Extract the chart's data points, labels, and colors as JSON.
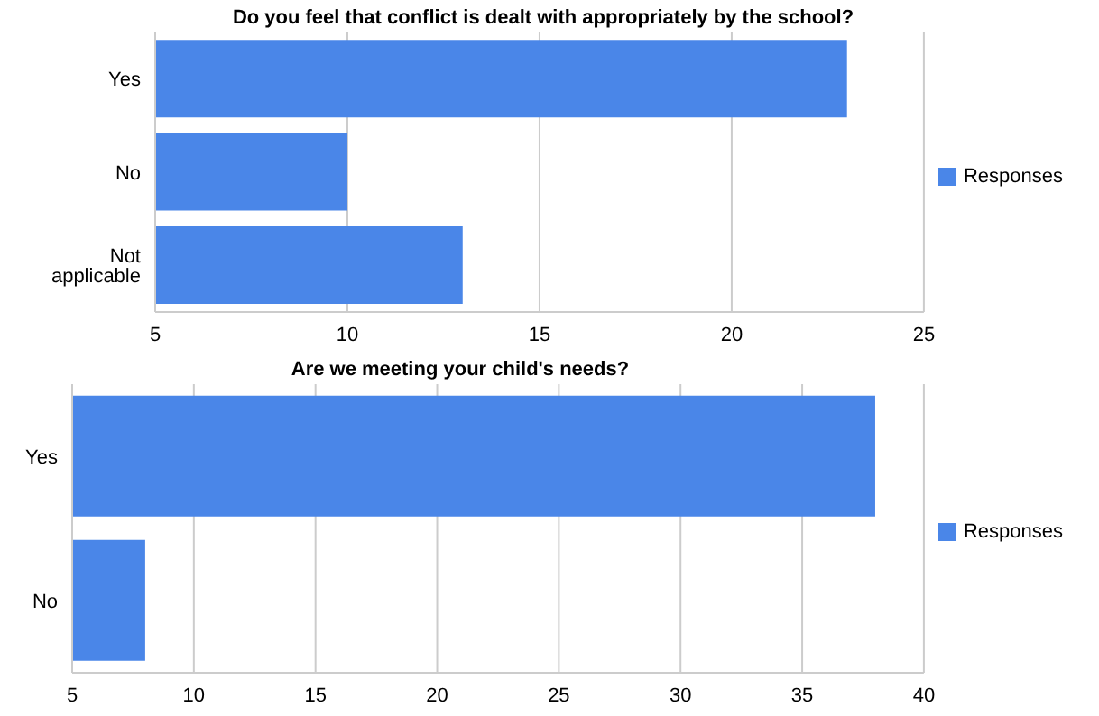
{
  "chart_data": [
    {
      "type": "bar",
      "orientation": "horizontal",
      "title": "Do you feel that conflict is dealt with appropriately by the school?",
      "categories": [
        "Yes",
        "No",
        "Not applicable"
      ],
      "series": [
        {
          "name": "Responses",
          "color": "#4a86e8",
          "values": [
            23,
            10,
            13
          ]
        }
      ],
      "xlim": [
        5,
        25
      ],
      "xticks": [
        5,
        10,
        15,
        20,
        25
      ],
      "grid": "x",
      "legend": "right"
    },
    {
      "type": "bar",
      "orientation": "horizontal",
      "title": "Are we meeting your child's needs?",
      "categories": [
        "Yes",
        "No"
      ],
      "series": [
        {
          "name": "Responses",
          "color": "#4a86e8",
          "values": [
            38,
            8
          ]
        }
      ],
      "xlim": [
        5,
        40
      ],
      "xticks": [
        5,
        10,
        15,
        20,
        25,
        30,
        35,
        40
      ],
      "grid": "x",
      "legend": "right"
    }
  ]
}
